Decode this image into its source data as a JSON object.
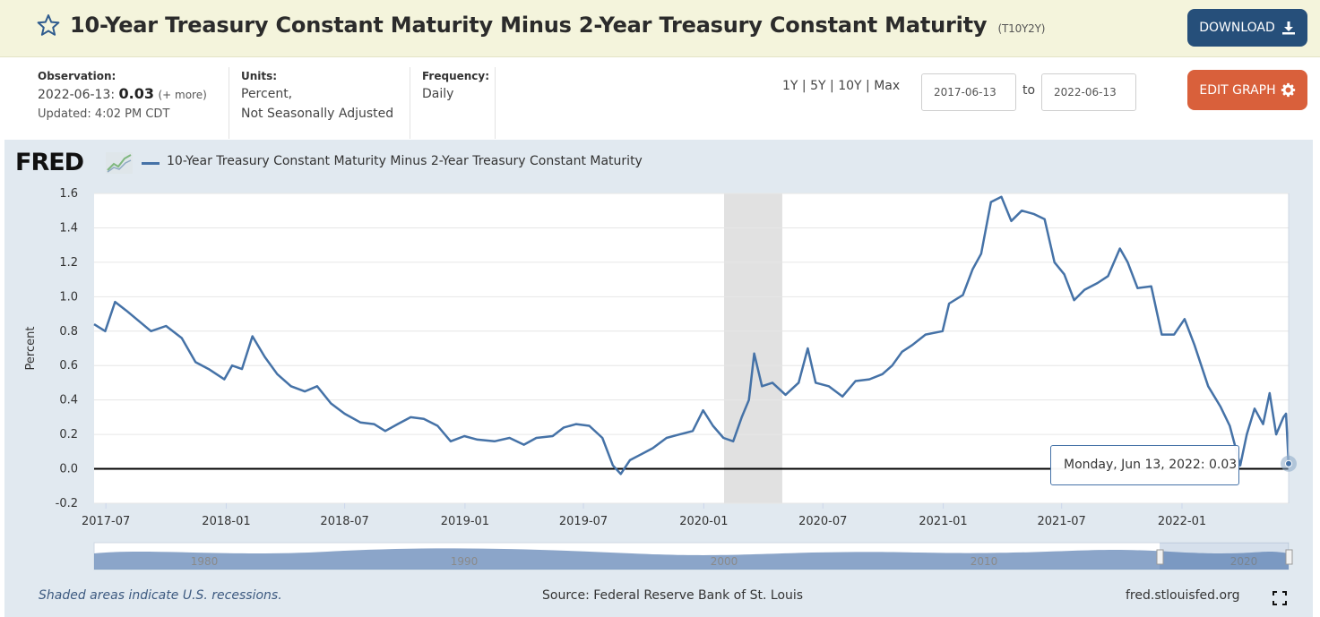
{
  "header": {
    "title": "10-Year Treasury Constant Maturity Minus 2-Year Treasury Constant Maturity",
    "series_code": "(T10Y2Y)",
    "download_label": "DOWNLOAD"
  },
  "observation": {
    "label": "Observation:",
    "date": "2022-06-13:",
    "value": "0.03",
    "more": "(+ more)",
    "updated": "Updated: 4:02 PM CDT"
  },
  "units": {
    "label": "Units:",
    "line1": "Percent,",
    "line2": "Not Seasonally Adjusted"
  },
  "frequency": {
    "label": "Frequency:",
    "value": "Daily"
  },
  "ranges": [
    "1Y",
    "5Y",
    "10Y",
    "Max"
  ],
  "date_range": {
    "start": "2017-06-13",
    "to_label": "to",
    "end": "2022-06-13"
  },
  "edit_label": "EDIT GRAPH",
  "legend_label": "10-Year Treasury Constant Maturity Minus 2-Year Treasury Constant Maturity",
  "fred_logo": "FRED",
  "tooltip": {
    "date": "Monday, Jun 13, 2022:",
    "value": "0.03"
  },
  "footer": {
    "note": "Shaded areas indicate U.S. recessions.",
    "source": "Source: Federal Reserve Bank of St. Louis",
    "url": "fred.stlouisfed.org"
  },
  "colors": {
    "series": "#4572a7",
    "recession": "#e1e1e1",
    "download": "#264f7a",
    "edit": "#d9603b"
  },
  "chart_data": {
    "type": "line",
    "ylabel": "Percent",
    "ylim": [
      -0.2,
      1.6
    ],
    "yticks": [
      -0.2,
      0.0,
      0.2,
      0.4,
      0.6,
      0.8,
      1.0,
      1.2,
      1.4,
      1.6
    ],
    "xlim": [
      "2017-06-13",
      "2022-06-13"
    ],
    "xticks": [
      "2017-07",
      "2018-01",
      "2018-07",
      "2019-01",
      "2019-07",
      "2020-01",
      "2020-07",
      "2021-01",
      "2021-07",
      "2022-01"
    ],
    "recessions": [
      [
        "2020-02-01",
        "2020-04-30"
      ]
    ],
    "navigator_labels": [
      "1980",
      "1990",
      "2000",
      "2010",
      "2020"
    ],
    "grid": true,
    "series": [
      {
        "name": "10-Year Treasury Constant Maturity Minus 2-Year Treasury Constant Maturity",
        "points": [
          [
            "2017-06-13",
            0.84
          ],
          [
            "2017-06-30",
            0.8
          ],
          [
            "2017-07-15",
            0.97
          ],
          [
            "2017-08-01",
            0.92
          ],
          [
            "2017-08-20",
            0.86
          ],
          [
            "2017-09-08",
            0.8
          ],
          [
            "2017-10-01",
            0.83
          ],
          [
            "2017-10-25",
            0.76
          ],
          [
            "2017-11-15",
            0.62
          ],
          [
            "2017-12-05",
            0.58
          ],
          [
            "2017-12-29",
            0.52
          ],
          [
            "2018-01-10",
            0.6
          ],
          [
            "2018-01-25",
            0.58
          ],
          [
            "2018-02-10",
            0.77
          ],
          [
            "2018-03-01",
            0.65
          ],
          [
            "2018-03-20",
            0.55
          ],
          [
            "2018-04-10",
            0.48
          ],
          [
            "2018-05-01",
            0.45
          ],
          [
            "2018-05-20",
            0.48
          ],
          [
            "2018-06-10",
            0.38
          ],
          [
            "2018-07-01",
            0.32
          ],
          [
            "2018-07-25",
            0.27
          ],
          [
            "2018-08-15",
            0.26
          ],
          [
            "2018-09-01",
            0.22
          ],
          [
            "2018-09-20",
            0.26
          ],
          [
            "2018-10-10",
            0.3
          ],
          [
            "2018-10-30",
            0.29
          ],
          [
            "2018-11-20",
            0.25
          ],
          [
            "2018-12-10",
            0.16
          ],
          [
            "2018-12-31",
            0.19
          ],
          [
            "2019-01-20",
            0.17
          ],
          [
            "2019-02-15",
            0.16
          ],
          [
            "2019-03-10",
            0.18
          ],
          [
            "2019-04-01",
            0.14
          ],
          [
            "2019-04-20",
            0.18
          ],
          [
            "2019-05-15",
            0.19
          ],
          [
            "2019-06-01",
            0.24
          ],
          [
            "2019-06-20",
            0.26
          ],
          [
            "2019-07-10",
            0.25
          ],
          [
            "2019-07-30",
            0.18
          ],
          [
            "2019-08-15",
            0.02
          ],
          [
            "2019-08-27",
            -0.03
          ],
          [
            "2019-09-10",
            0.05
          ],
          [
            "2019-09-25",
            0.08
          ],
          [
            "2019-10-15",
            0.12
          ],
          [
            "2019-11-05",
            0.18
          ],
          [
            "2019-11-25",
            0.2
          ],
          [
            "2019-12-15",
            0.22
          ],
          [
            "2019-12-31",
            0.34
          ],
          [
            "2020-01-15",
            0.25
          ],
          [
            "2020-01-31",
            0.18
          ],
          [
            "2020-02-15",
            0.16
          ],
          [
            "2020-02-28",
            0.3
          ],
          [
            "2020-03-10",
            0.4
          ],
          [
            "2020-03-18",
            0.67
          ],
          [
            "2020-03-30",
            0.48
          ],
          [
            "2020-04-15",
            0.5
          ],
          [
            "2020-05-05",
            0.43
          ],
          [
            "2020-05-25",
            0.5
          ],
          [
            "2020-06-08",
            0.7
          ],
          [
            "2020-06-20",
            0.5
          ],
          [
            "2020-07-10",
            0.48
          ],
          [
            "2020-07-31",
            0.42
          ],
          [
            "2020-08-20",
            0.51
          ],
          [
            "2020-09-10",
            0.52
          ],
          [
            "2020-09-30",
            0.55
          ],
          [
            "2020-10-15",
            0.6
          ],
          [
            "2020-10-30",
            0.68
          ],
          [
            "2020-11-15",
            0.72
          ],
          [
            "2020-12-05",
            0.78
          ],
          [
            "2020-12-31",
            0.8
          ],
          [
            "2021-01-10",
            0.96
          ],
          [
            "2021-01-31",
            1.01
          ],
          [
            "2021-02-15",
            1.16
          ],
          [
            "2021-02-28",
            1.25
          ],
          [
            "2021-03-15",
            1.55
          ],
          [
            "2021-03-31",
            1.58
          ],
          [
            "2021-04-15",
            1.44
          ],
          [
            "2021-05-01",
            1.5
          ],
          [
            "2021-05-20",
            1.48
          ],
          [
            "2021-06-05",
            1.45
          ],
          [
            "2021-06-20",
            1.2
          ],
          [
            "2021-07-05",
            1.13
          ],
          [
            "2021-07-20",
            0.98
          ],
          [
            "2021-08-05",
            1.04
          ],
          [
            "2021-08-25",
            1.08
          ],
          [
            "2021-09-10",
            1.12
          ],
          [
            "2021-09-28",
            1.28
          ],
          [
            "2021-10-10",
            1.2
          ],
          [
            "2021-10-25",
            1.05
          ],
          [
            "2021-11-15",
            1.06
          ],
          [
            "2021-12-01",
            0.78
          ],
          [
            "2021-12-20",
            0.78
          ],
          [
            "2022-01-05",
            0.87
          ],
          [
            "2022-01-20",
            0.72
          ],
          [
            "2022-02-10",
            0.48
          ],
          [
            "2022-03-01",
            0.36
          ],
          [
            "2022-03-15",
            0.25
          ],
          [
            "2022-03-31",
            0.02
          ],
          [
            "2022-04-10",
            0.2
          ],
          [
            "2022-04-22",
            0.35
          ],
          [
            "2022-05-05",
            0.26
          ],
          [
            "2022-05-15",
            0.44
          ],
          [
            "2022-05-25",
            0.2
          ],
          [
            "2022-06-05",
            0.3
          ],
          [
            "2022-06-09",
            0.32
          ],
          [
            "2022-06-13",
            0.03
          ]
        ]
      }
    ]
  }
}
